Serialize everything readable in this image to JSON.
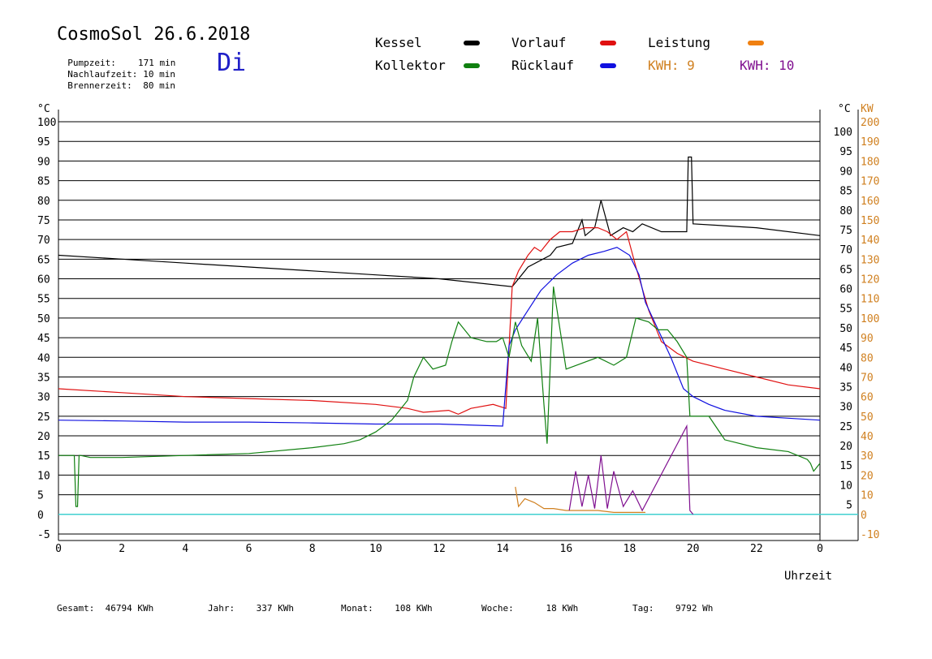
{
  "header": {
    "title": "CosmoSol 26.6.2018",
    "day": "Di",
    "info": [
      {
        "label": "Pumpzeit:",
        "value": "171 min"
      },
      {
        "label": "Nachlaufzeit:",
        "value": "10 min"
      },
      {
        "label": "Brennerzeit:",
        "value": "80 min"
      }
    ]
  },
  "legend": [
    {
      "label": "Kessel",
      "color": "#000000"
    },
    {
      "label": "Vorlauf",
      "color": "#e01010"
    },
    {
      "label": "Leistung",
      "color": "#f08010"
    },
    {
      "label": "Kollektor",
      "color": "#108010"
    },
    {
      "label": "Rücklauf",
      "color": "#1010e0"
    }
  ],
  "kwh": [
    {
      "label": "KWH:",
      "value": "9",
      "color": "#d08020"
    },
    {
      "label": "KWH:",
      "value": "10",
      "color": "#801090"
    }
  ],
  "footer": [
    {
      "label": "Gesamt:",
      "value": "46794 KWh"
    },
    {
      "label": "Jahr:",
      "value": "337 KWh"
    },
    {
      "label": "Monat:",
      "value": "108 KWh"
    },
    {
      "label": "Woche:",
      "value": "18 KWh"
    },
    {
      "label": "Tag:",
      "value": "9792 Wh"
    }
  ],
  "chart_data": {
    "type": "line",
    "xlabel": "Uhrzeit",
    "ylabel_left": "°C",
    "ylabel_right": "°C",
    "ylabel_right2": "KW",
    "xlim": [
      0,
      24
    ],
    "ylim": [
      -5,
      100
    ],
    "y2lim": [
      -10,
      200
    ],
    "x_ticks": [
      "0",
      "2",
      "4",
      "6",
      "8",
      "10",
      "12",
      "14",
      "16",
      "18",
      "20",
      "22",
      "0"
    ],
    "y_ticks_left": [
      "100",
      "95",
      "90",
      "85",
      "80",
      "75",
      "70",
      "65",
      "60",
      "55",
      "50",
      "45",
      "40",
      "35",
      "30",
      "25",
      "20",
      "15",
      "10",
      "5",
      "0",
      "-5"
    ],
    "y_ticks_right": [
      "100",
      "95",
      "90",
      "85",
      "80",
      "75",
      "70",
      "65",
      "60",
      "55",
      "50",
      "45",
      "40",
      "35",
      "30",
      "25",
      "20",
      "15",
      "10",
      "5"
    ],
    "y2_ticks": [
      "200",
      "190",
      "180",
      "170",
      "160",
      "150",
      "140",
      "130",
      "120",
      "110",
      "100",
      "90",
      "80",
      "70",
      "60",
      "50",
      "40",
      "30",
      "20",
      "10",
      "0",
      "-10"
    ],
    "grid": true,
    "series": [
      {
        "name": "Kessel",
        "color": "#000000",
        "x": [
          0,
          2,
          4,
          6,
          8,
          10,
          12,
          14.3,
          14.8,
          15.5,
          15.7,
          16.2,
          16.5,
          16.6,
          16.9,
          17.1,
          17.4,
          17.8,
          18.1,
          18.4,
          19.0,
          19.8,
          19.85,
          19.95,
          20.0,
          22,
          24
        ],
        "y": [
          66,
          65,
          64,
          63,
          62,
          61,
          60,
          58,
          63,
          66,
          68,
          69,
          75,
          71,
          73,
          80,
          71,
          73,
          72,
          74,
          72,
          72,
          91,
          91,
          74,
          73,
          71
        ]
      },
      {
        "name": "Vorlauf",
        "color": "#e01010",
        "x": [
          0,
          2,
          4,
          6,
          8,
          10,
          11,
          11.5,
          12.3,
          12.6,
          13,
          13.7,
          14.1,
          14.3,
          14.5,
          14.8,
          15,
          15.2,
          15.5,
          15.8,
          16.2,
          16.6,
          17,
          17.3,
          17.6,
          17.9,
          18.2,
          18.6,
          19,
          19.5,
          20,
          21,
          22,
          23,
          24
        ],
        "y": [
          32,
          31,
          30,
          29.5,
          29,
          28,
          27,
          26,
          26.5,
          25.5,
          27,
          28,
          27,
          58,
          62,
          66,
          68,
          67,
          70,
          72,
          72,
          73,
          73,
          72,
          70,
          72,
          63,
          52,
          44,
          41,
          39,
          37,
          35,
          33,
          32
        ]
      },
      {
        "name": "Rücklauf",
        "color": "#1010e0",
        "x": [
          0,
          2,
          4,
          6,
          8,
          10,
          12,
          14.0,
          14.2,
          14.4,
          14.8,
          15.2,
          15.7,
          16.2,
          16.7,
          17.2,
          17.6,
          18.0,
          18.3,
          18.5,
          18.9,
          19.3,
          19.7,
          20,
          20.5,
          21,
          22,
          23,
          24
        ],
        "y": [
          24,
          23.8,
          23.5,
          23.5,
          23.3,
          23,
          23,
          22.5,
          43,
          47,
          52,
          57,
          61,
          64,
          66,
          67,
          68,
          66,
          61,
          54,
          47,
          40,
          32,
          30,
          28,
          26.5,
          25,
          24.5,
          24
        ]
      },
      {
        "name": "Kollektor",
        "color": "#108010",
        "x": [
          0,
          0.5,
          0.55,
          0.6,
          0.65,
          0.7,
          1,
          2,
          4,
          6,
          8,
          9,
          9.5,
          10,
          10.5,
          11,
          11.2,
          11.5,
          11.8,
          12.2,
          12.4,
          12.6,
          13,
          13.5,
          13.8,
          14,
          14.2,
          14.4,
          14.6,
          14.9,
          15.1,
          15.3,
          15.4,
          15.6,
          16,
          17,
          17.5,
          17.9,
          18.2,
          18.6,
          18.9,
          19.2,
          19.5,
          19.8,
          19.9,
          20.0,
          20.5,
          21,
          22,
          23,
          23.6,
          23.7,
          23.8,
          24
        ],
        "y": [
          15,
          15,
          2,
          2,
          15,
          15,
          14.5,
          14.5,
          15,
          15.5,
          17,
          18,
          19,
          21,
          24,
          29,
          35,
          40,
          37,
          38,
          44,
          49,
          45,
          44,
          44,
          45,
          40,
          49,
          43,
          39,
          50,
          28,
          18,
          58,
          37,
          40,
          38,
          40,
          50,
          49,
          47,
          47,
          44,
          40,
          25,
          25,
          25,
          19,
          17,
          16,
          14,
          13,
          11,
          13
        ]
      },
      {
        "name": "KWH: 9",
        "color": "#d08020",
        "axis": "kw",
        "x": [
          14.4,
          14.5,
          14.7,
          15,
          15.3,
          15.6,
          16,
          16.5,
          17,
          17.5,
          18,
          18.5
        ],
        "y": [
          14,
          4,
          8,
          6,
          3,
          3,
          2,
          2,
          2,
          1,
          1,
          1
        ]
      },
      {
        "name": "KWH: 10",
        "color": "#801090",
        "axis": "kw",
        "x": [
          16.1,
          16.3,
          16.5,
          16.7,
          16.9,
          17.1,
          17.3,
          17.5,
          17.8,
          18.1,
          18.4,
          19.8,
          19.9,
          20.0
        ],
        "y": [
          2,
          22,
          4,
          20,
          3,
          30,
          3,
          22,
          4,
          12,
          2,
          45,
          2,
          0
        ]
      }
    ]
  }
}
